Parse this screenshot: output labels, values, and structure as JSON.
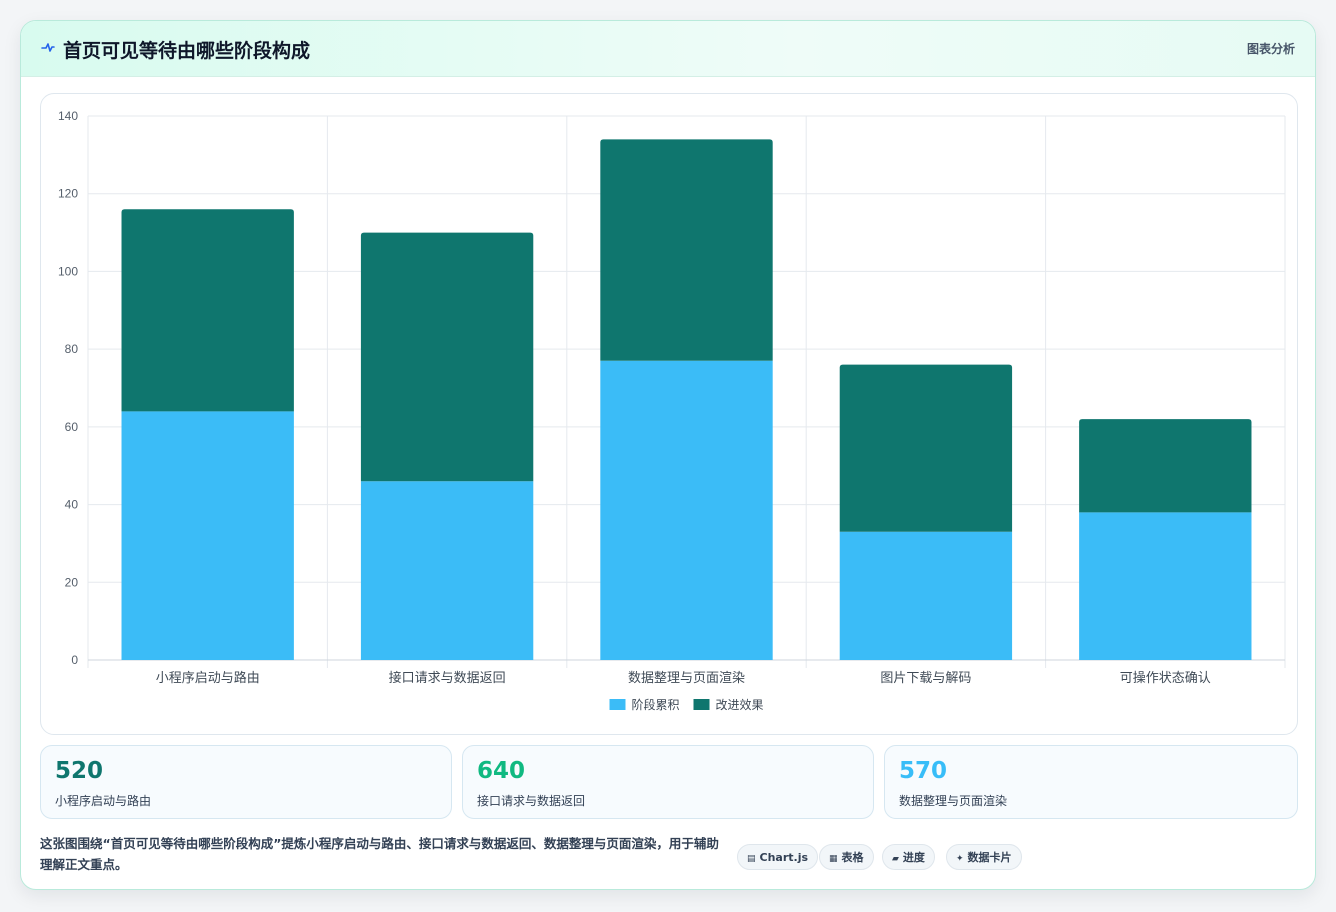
{
  "header": {
    "title": "首页可见等待由哪些阶段构成",
    "action_label": "图表分析",
    "icon": "pulse-icon",
    "icon_color": "#2563eb"
  },
  "chart_data": {
    "type": "bar",
    "stacked": true,
    "categories": [
      "小程序启动与路由",
      "接口请求与数据返回",
      "数据整理与页面渲染",
      "图片下载与解码",
      "可操作状态确认"
    ],
    "series": [
      {
        "name": "阶段累积",
        "values": [
          64,
          46,
          77,
          33,
          38
        ],
        "color": "#3bbcf7"
      },
      {
        "name": "改进效果",
        "values": [
          52,
          64,
          57,
          43,
          24
        ],
        "color": "#0f766e"
      }
    ],
    "ylim": [
      0,
      140
    ],
    "yticks": [
      0,
      20,
      40,
      60,
      80,
      100,
      120,
      140
    ],
    "grid": true,
    "legend_position": "bottom-center",
    "xlabel": "",
    "ylabel": ""
  },
  "stats": [
    {
      "value": "520",
      "label": "小程序启动与路由",
      "color": "#0f766e"
    },
    {
      "value": "640",
      "label": "接口请求与数据返回",
      "color": "#10b981"
    },
    {
      "value": "570",
      "label": "数据整理与页面渲染",
      "color": "#38bdf8"
    }
  ],
  "footer": {
    "description": "这张图围绕“首页可见等待由哪些阶段构成”提炼小程序启动与路由、接口请求与数据返回、数据整理与页面渲染，用于辅助理解正文重点。",
    "chips": [
      {
        "label": "Chart.js",
        "icon": "chart-icon"
      },
      {
        "label": "表格",
        "icon": "table-icon"
      },
      {
        "label": "进度",
        "icon": "progress-icon"
      },
      {
        "label": "数据卡片",
        "icon": "sparkle-icon"
      }
    ]
  }
}
